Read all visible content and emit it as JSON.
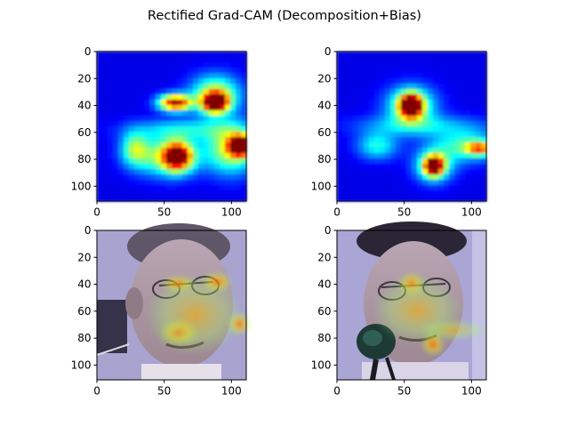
{
  "chart_data": [
    {
      "type": "heatmap",
      "id": "heatmap-top-left",
      "image_kind": "grad-cam-heatmap",
      "colormap": "jet",
      "xlim": [
        0,
        111
      ],
      "ylim": [
        111,
        0
      ],
      "xticks": [
        0,
        50,
        100
      ],
      "yticks": [
        0,
        20,
        40,
        60,
        80,
        100
      ],
      "background_value": 0.1,
      "blobs": [
        {
          "x": 58,
          "y": 38,
          "rx": 12,
          "ry": 6,
          "v": 0.85
        },
        {
          "x": 88,
          "y": 38,
          "rx": 9,
          "ry": 7,
          "v": 0.9
        },
        {
          "x": 88,
          "y": 32,
          "rx": 18,
          "ry": 14,
          "v": 0.5
        },
        {
          "x": 60,
          "y": 78,
          "rx": 10,
          "ry": 10,
          "v": 0.78
        },
        {
          "x": 52,
          "y": 78,
          "rx": 24,
          "ry": 14,
          "v": 0.45
        },
        {
          "x": 107,
          "y": 70,
          "rx": 8,
          "ry": 7,
          "v": 1.0
        },
        {
          "x": 100,
          "y": 72,
          "rx": 18,
          "ry": 18,
          "v": 0.5
        },
        {
          "x": 28,
          "y": 72,
          "rx": 10,
          "ry": 12,
          "v": 0.35
        },
        {
          "x": 65,
          "y": 58,
          "rx": 40,
          "ry": 8,
          "v": 0.25
        }
      ]
    },
    {
      "type": "heatmap",
      "id": "heatmap-top-right",
      "image_kind": "grad-cam-heatmap",
      "colormap": "jet",
      "xlim": [
        0,
        111
      ],
      "ylim": [
        111,
        0
      ],
      "xticks": [
        0,
        50,
        100
      ],
      "yticks": [
        0,
        20,
        40,
        60,
        80,
        100
      ],
      "background_value": 0.1,
      "blobs": [
        {
          "x": 55,
          "y": 40,
          "rx": 8,
          "ry": 8,
          "v": 0.95
        },
        {
          "x": 55,
          "y": 40,
          "rx": 18,
          "ry": 14,
          "v": 0.45
        },
        {
          "x": 72,
          "y": 85,
          "rx": 7,
          "ry": 7,
          "v": 0.78
        },
        {
          "x": 72,
          "y": 85,
          "rx": 14,
          "ry": 12,
          "v": 0.4
        },
        {
          "x": 106,
          "y": 72,
          "rx": 10,
          "ry": 5,
          "v": 0.5
        },
        {
          "x": 95,
          "y": 70,
          "rx": 25,
          "ry": 12,
          "v": 0.33
        },
        {
          "x": 30,
          "y": 70,
          "rx": 15,
          "ry": 10,
          "v": 0.3
        },
        {
          "x": 60,
          "y": 55,
          "rx": 45,
          "ry": 8,
          "v": 0.22
        }
      ]
    },
    {
      "type": "heatmap",
      "id": "overlay-bottom-left",
      "image_kind": "face-photo-with-heatmap-overlay",
      "colormap": "jet",
      "xlim": [
        0,
        111
      ],
      "ylim": [
        111,
        0
      ],
      "xticks": [
        0,
        50,
        100
      ],
      "yticks": [
        0,
        20,
        40,
        60,
        80,
        100
      ]
    },
    {
      "type": "heatmap",
      "id": "overlay-bottom-right",
      "image_kind": "face-photo-with-heatmap-overlay",
      "colormap": "jet",
      "xlim": [
        0,
        111
      ],
      "ylim": [
        111,
        0
      ],
      "xticks": [
        0,
        50,
        100
      ],
      "yticks": [
        0,
        20,
        40,
        60,
        80,
        100
      ]
    }
  ],
  "figure": {
    "title": "Rectified Grad-CAM (Decomposition+Bias)"
  }
}
